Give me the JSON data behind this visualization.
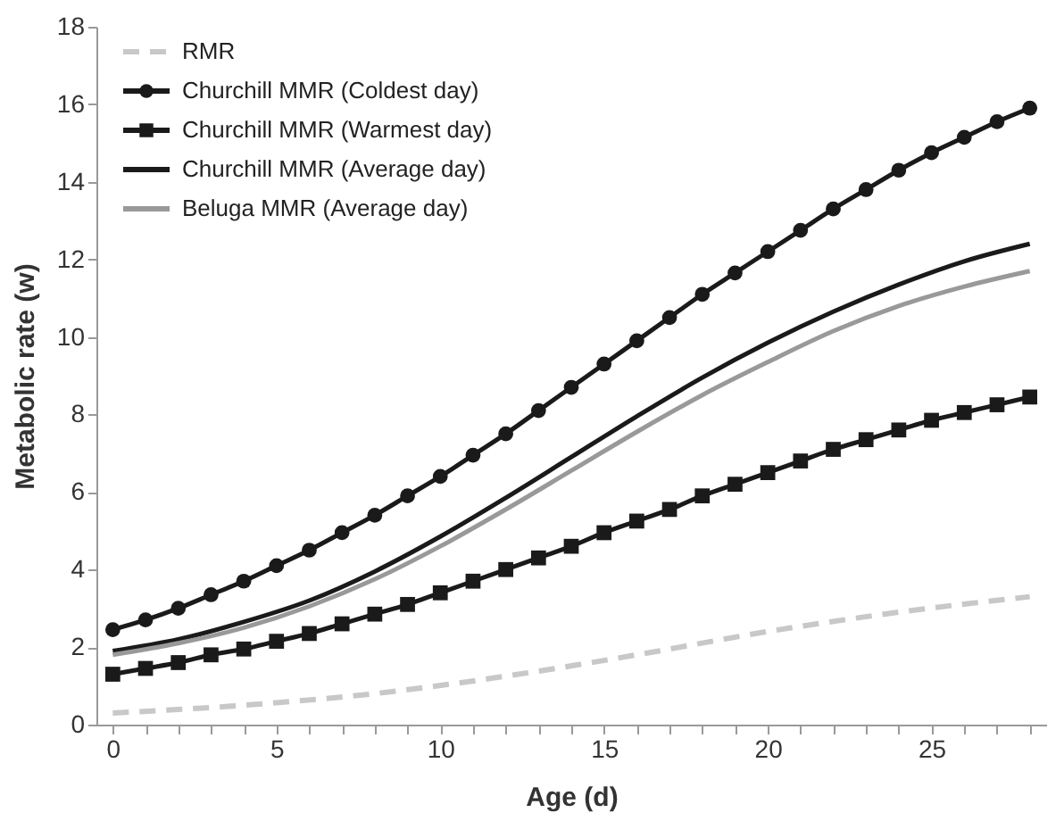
{
  "chart_data": {
    "type": "line",
    "xlabel": "Age (d)",
    "ylabel": "Metabolic rate (w)",
    "xlim": [
      -0.5,
      28.5
    ],
    "ylim": [
      0,
      18
    ],
    "xticks": [
      0,
      {
        "value": 1,
        "label": null
      },
      {
        "value": 2,
        "label": null
      },
      {
        "value": 3,
        "label": null
      },
      {
        "value": 4,
        "label": null
      },
      5,
      {
        "value": 6,
        "label": null
      },
      {
        "value": 7,
        "label": null
      },
      {
        "value": 8,
        "label": null
      },
      {
        "value": 9,
        "label": null
      },
      10,
      {
        "value": 11,
        "label": null
      },
      {
        "value": 12,
        "label": null
      },
      {
        "value": 13,
        "label": null
      },
      {
        "value": 14,
        "label": null
      },
      15,
      {
        "value": 16,
        "label": null
      },
      {
        "value": 17,
        "label": null
      },
      {
        "value": 18,
        "label": null
      },
      {
        "value": 19,
        "label": null
      },
      20,
      {
        "value": 21,
        "label": null
      },
      {
        "value": 22,
        "label": null
      },
      {
        "value": 23,
        "label": null
      },
      {
        "value": 24,
        "label": null
      },
      25,
      {
        "value": 26,
        "label": null
      },
      {
        "value": 27,
        "label": null
      },
      {
        "value": 28,
        "label": null
      }
    ],
    "yticks": [
      0,
      2,
      4,
      6,
      8,
      10,
      12,
      14,
      16,
      18
    ],
    "grid": false,
    "legend": "top left",
    "series": [
      {
        "name": "RMR",
        "color": "#c8c8c8",
        "line_style": "dashed",
        "marker": "none",
        "x": [
          0,
          4,
          8,
          12,
          16,
          20,
          24,
          28
        ],
        "values": [
          0.3,
          0.5,
          0.8,
          1.25,
          1.8,
          2.4,
          2.9,
          3.3
        ]
      },
      {
        "name": "Churchill MMR (Coldest day)",
        "color": "#1a1a1a",
        "line_style": "solid",
        "marker": "circle",
        "x": [
          0,
          1,
          2,
          3,
          4,
          5,
          6,
          7,
          8,
          9,
          10,
          11,
          12,
          13,
          14,
          15,
          16,
          17,
          18,
          19,
          20,
          21,
          22,
          23,
          24,
          25,
          26,
          27,
          28
        ],
        "values": [
          2.45,
          2.7,
          3.0,
          3.35,
          3.7,
          4.1,
          4.5,
          4.95,
          5.4,
          5.9,
          6.4,
          6.95,
          7.5,
          8.1,
          8.7,
          9.3,
          9.9,
          10.5,
          11.1,
          11.65,
          12.2,
          12.75,
          13.3,
          13.8,
          14.3,
          14.75,
          15.15,
          15.55,
          15.9
        ]
      },
      {
        "name": "Churchill MMR (Warmest day)",
        "color": "#1a1a1a",
        "line_style": "solid",
        "marker": "square",
        "x": [
          0,
          1,
          2,
          3,
          4,
          5,
          6,
          7,
          8,
          9,
          10,
          11,
          12,
          13,
          14,
          15,
          16,
          17,
          18,
          19,
          20,
          21,
          22,
          23,
          24,
          25,
          26,
          27,
          28
        ],
        "values": [
          1.3,
          1.45,
          1.6,
          1.8,
          1.95,
          2.15,
          2.35,
          2.6,
          2.85,
          3.1,
          3.4,
          3.7,
          4.0,
          4.3,
          4.6,
          4.95,
          5.25,
          5.55,
          5.9,
          6.2,
          6.5,
          6.8,
          7.1,
          7.35,
          7.6,
          7.85,
          8.05,
          8.25,
          8.45
        ]
      },
      {
        "name": "Churchill MMR (Average day)",
        "color": "#1a1a1a",
        "line_style": "solid",
        "marker": "none",
        "x": [
          0,
          2,
          4,
          6,
          8,
          10,
          12,
          14,
          16,
          18,
          20,
          22,
          24,
          26,
          28
        ],
        "values": [
          1.9,
          2.2,
          2.65,
          3.2,
          3.95,
          4.85,
          5.85,
          6.9,
          7.95,
          8.95,
          9.85,
          10.65,
          11.35,
          11.95,
          12.4
        ]
      },
      {
        "name": "Beluga MMR (Average day)",
        "color": "#999999",
        "line_style": "solid",
        "marker": "none",
        "x": [
          0,
          2,
          4,
          6,
          8,
          10,
          12,
          14,
          16,
          18,
          20,
          22,
          24,
          26,
          28
        ],
        "values": [
          1.8,
          2.1,
          2.5,
          3.05,
          3.75,
          4.6,
          5.55,
          6.55,
          7.55,
          8.5,
          9.35,
          10.15,
          10.8,
          11.3,
          11.7
        ]
      }
    ]
  }
}
